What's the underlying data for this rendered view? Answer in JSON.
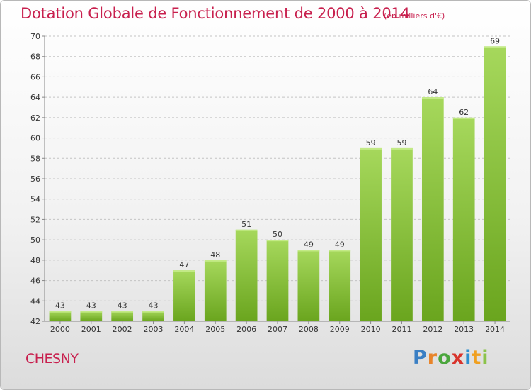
{
  "title": "Dotation Globale de Fonctionnement de 2000 à 2014",
  "unit_note": "(en milliers d'€)",
  "commune": "CHESNY",
  "brand": {
    "letters": [
      "P",
      "r",
      "o",
      "x",
      "i",
      "t",
      "i"
    ],
    "colors": [
      "#3a7fc4",
      "#e8842a",
      "#4aa63c",
      "#d8342c",
      "#2c8fd0",
      "#f0a020",
      "#8bc34a"
    ]
  },
  "chart_data": {
    "type": "bar",
    "title": "Dotation Globale de Fonctionnement de 2000 à 2014",
    "subtitle": "(en milliers d'€)",
    "categories": [
      "2000",
      "2001",
      "2002",
      "2003",
      "2004",
      "2005",
      "2006",
      "2007",
      "2008",
      "2009",
      "2010",
      "2011",
      "2012",
      "2013",
      "2014"
    ],
    "values": [
      43,
      43,
      43,
      43,
      47,
      48,
      51,
      50,
      49,
      49,
      59,
      59,
      64,
      62,
      69
    ],
    "data_labels": [
      "43",
      "43",
      "43",
      "43",
      "47",
      "48",
      "51",
      "50",
      "49",
      "49",
      "59",
      "59",
      "64",
      "62",
      "69"
    ],
    "ylim": [
      42,
      70
    ],
    "yticks": [
      "42",
      "44",
      "46",
      "48",
      "50",
      "52",
      "54",
      "56",
      "58",
      "60",
      "62",
      "64",
      "66",
      "68",
      "70"
    ],
    "grid": "horizontal dashed",
    "legend": "none",
    "bar_color": "#7ab82e",
    "bar_color_light": "#a3d65a"
  }
}
